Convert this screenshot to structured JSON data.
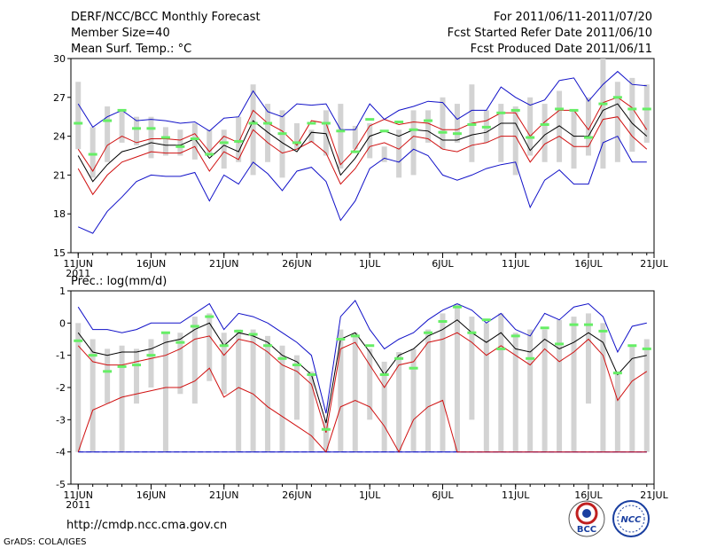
{
  "header": {
    "left": [
      "DERF/NCC/BCC Monthly Forecast",
      "Member Size=40",
      "Mean Surf. Temp.: °C"
    ],
    "right": [
      "For 2011/06/11-2011/07/20",
      "Fcst Started Refer Date 2011/06/10",
      "Fcst Produced Date 2011/06/11"
    ]
  },
  "footer": {
    "url": "http://cmdp.ncc.cma.gov.cn",
    "grads": "GrADS: COLA/IGES",
    "logo_bcc": "BCC",
    "logo_ncc": "NCC"
  },
  "colors": {
    "box": "#d3d3d3",
    "mean": "#000000",
    "median": "#66ee66",
    "spread": "#d01010",
    "extreme": "#1010c8",
    "zero": "#2030c0"
  },
  "chart_data": [
    {
      "type": "line",
      "title": "Mean Surf. Temp.: °C",
      "x_ticks": [
        "11JUN",
        "16JUN",
        "21JUN",
        "26JUN",
        "1JUL",
        "6JUL",
        "11JUL",
        "16JUL",
        "21JUL"
      ],
      "x_sub": "2011",
      "ylim": [
        15,
        30
      ],
      "y_ticks": [
        15,
        18,
        21,
        24,
        27,
        30
      ],
      "days": 40,
      "box_low": [
        23.0,
        20.8,
        22.0,
        23.5,
        23.3,
        22.3,
        22.5,
        22.5,
        22.2,
        22.5,
        21.5,
        22.0,
        21.0,
        22.0,
        20.8,
        23.0,
        23.5,
        22.5,
        21.5,
        23.0,
        22.3,
        22.0,
        20.8,
        21.0,
        23.5,
        23.0,
        23.5,
        22.0,
        23.5,
        22.0,
        21.0,
        22.5,
        22.0,
        22.0,
        21.5,
        22.5,
        21.5,
        22.0,
        22.8,
        23.5
      ],
      "box_high": [
        28.2,
        24.7,
        26.3,
        26.0,
        25.5,
        25.5,
        24.7,
        24.5,
        25.0,
        24.5,
        24.5,
        25.5,
        28.0,
        26.5,
        26.0,
        25.0,
        24.5,
        26.0,
        26.5,
        24.8,
        25.0,
        23.2,
        24.5,
        26.0,
        26.0,
        27.0,
        26.5,
        28.0,
        26.0,
        26.5,
        26.3,
        27.0,
        26.5,
        27.5,
        26.0,
        27.0,
        30.0,
        28.2,
        28.5,
        28.0
      ],
      "series": [
        {
          "name": "max",
          "values": [
            17.0,
            16.5,
            18.2,
            19.3,
            20.5,
            21.0,
            20.9,
            20.9,
            21.2,
            19.0,
            21.0,
            20.3,
            22.0,
            21.1,
            19.8,
            21.3,
            21.6,
            20.5,
            17.5,
            19.0,
            21.5,
            22.3,
            22.0,
            23.0,
            22.5,
            21.0,
            20.6,
            21.0,
            21.5,
            21.8,
            22.0,
            18.5,
            20.6,
            21.4,
            20.3,
            20.3,
            23.5,
            24.0,
            22.0,
            22.0
          ]
        },
        {
          "name": "spread_low",
          "values": [
            21.5,
            19.5,
            21.0,
            22.0,
            22.4,
            22.8,
            22.7,
            22.7,
            23.2,
            21.3,
            22.8,
            22.2,
            24.5,
            23.5,
            22.7,
            23.0,
            23.6,
            22.7,
            20.3,
            21.5,
            23.2,
            23.5,
            23.0,
            24.0,
            23.8,
            23.0,
            22.8,
            23.3,
            23.5,
            24.0,
            24.0,
            22.0,
            23.4,
            24.0,
            23.2,
            23.2,
            25.3,
            25.5,
            24.0,
            23.0
          ]
        },
        {
          "name": "mean",
          "values": [
            22.5,
            20.5,
            21.8,
            22.8,
            23.1,
            23.5,
            23.3,
            23.3,
            23.8,
            22.3,
            23.3,
            22.8,
            25.2,
            24.3,
            23.5,
            22.8,
            24.3,
            24.2,
            21.0,
            22.3,
            24.0,
            24.4,
            24.0,
            24.5,
            24.4,
            23.7,
            23.7,
            24.1,
            24.3,
            25.0,
            25.0,
            22.9,
            24.1,
            24.8,
            24.0,
            24.0,
            26.0,
            26.5,
            25.0,
            24.0
          ]
        },
        {
          "name": "spread_high",
          "values": [
            23.0,
            21.3,
            23.3,
            24.0,
            23.5,
            23.8,
            23.8,
            23.7,
            24.2,
            22.8,
            24.0,
            23.5,
            26.0,
            25.0,
            24.4,
            23.3,
            25.2,
            25.0,
            21.8,
            23.0,
            24.8,
            25.3,
            24.9,
            25.1,
            25.0,
            24.5,
            24.5,
            25.0,
            25.2,
            25.8,
            25.8,
            24.0,
            25.1,
            26.0,
            26.0,
            24.5,
            26.6,
            27.0,
            26.2,
            24.5
          ]
        },
        {
          "name": "min",
          "values": [
            26.5,
            24.7,
            25.5,
            26.0,
            25.2,
            25.3,
            25.2,
            25.0,
            25.1,
            24.4,
            25.4,
            25.5,
            27.5,
            25.9,
            25.5,
            26.5,
            26.4,
            26.5,
            24.5,
            24.5,
            26.5,
            25.3,
            26.0,
            26.3,
            26.7,
            26.6,
            25.3,
            26.0,
            26.0,
            27.8,
            27.0,
            26.4,
            26.8,
            28.3,
            28.5,
            26.7,
            28.0,
            29.0,
            28.0,
            27.9
          ]
        },
        {
          "name": "median",
          "values": [
            25.0,
            22.6,
            25.2,
            26.0,
            24.6,
            24.6,
            23.9,
            23.2,
            23.8,
            22.6,
            23.5,
            23.6,
            25.0,
            25.0,
            24.2,
            23.5,
            25.0,
            25.0,
            24.4,
            22.8,
            25.3,
            24.4,
            25.1,
            24.5,
            25.2,
            24.3,
            24.2,
            24.9,
            24.7,
            25.8,
            26.0,
            23.9,
            24.9,
            26.1,
            26.0,
            23.9,
            26.5,
            27.0,
            26.1,
            26.1
          ]
        }
      ]
    },
    {
      "type": "line",
      "title": "Prec.: log(mm/d)",
      "x_ticks": [
        "11JUN",
        "16JUN",
        "21JUN",
        "26JUN",
        "1JUL",
        "6JUL",
        "11JUL",
        "16JUL",
        "21JUL"
      ],
      "x_sub": "2011",
      "ylim": [
        -5,
        1
      ],
      "y_ticks": [
        -5,
        -4,
        -3,
        -2,
        -1,
        0,
        1
      ],
      "days": 40,
      "box_low": [
        -4.0,
        -4.0,
        -2.5,
        -4.0,
        -2.5,
        -2.0,
        -4.0,
        -2.2,
        -2.5,
        -1.8,
        -2.2,
        -4.0,
        -4.0,
        -4.0,
        -4.0,
        -3.0,
        -4.0,
        -4.0,
        -4.0,
        -4.0,
        -3.0,
        -4.0,
        -4.0,
        -4.0,
        -4.0,
        -4.0,
        -4.0,
        -3.0,
        -4.0,
        -4.0,
        -4.0,
        -4.0,
        -4.0,
        -4.0,
        -4.0,
        -2.5,
        -4.0,
        -4.0,
        -4.0,
        -4.0
      ],
      "box_high": [
        0.0,
        -0.5,
        -0.8,
        -0.7,
        -0.8,
        -0.5,
        -0.3,
        -0.3,
        0.2,
        0.3,
        -0.3,
        -0.2,
        -0.2,
        -0.4,
        -0.7,
        -1.0,
        -1.5,
        -3.0,
        -0.2,
        -0.3,
        -0.8,
        -1.2,
        -0.9,
        -0.8,
        -0.2,
        0.3,
        0.6,
        0.2,
        0.0,
        0.3,
        -0.3,
        -0.2,
        -0.2,
        0.1,
        0.2,
        0.3,
        0.0,
        -1.5,
        -0.7,
        -0.5
      ],
      "series": [
        {
          "name": "min",
          "values": [
            -4,
            -4,
            -4,
            -4,
            -4,
            -4,
            -4,
            -4,
            -4,
            -4,
            -4,
            -4,
            -4,
            -4,
            -4,
            -4,
            -4,
            -4,
            -4,
            -4,
            -4,
            -4,
            -4,
            -4,
            -4,
            -4,
            -4,
            -4,
            -4,
            -4,
            -4,
            -4,
            -4,
            -4,
            -4,
            -4,
            -4,
            -4,
            -4,
            -4
          ]
        },
        {
          "name": "spread_low",
          "values": [
            -4.0,
            -2.7,
            -2.5,
            -2.3,
            -2.2,
            -2.1,
            -2.0,
            -2.0,
            -1.8,
            -1.4,
            -2.3,
            -2.0,
            -2.2,
            -2.6,
            -2.9,
            -3.2,
            -3.5,
            -4.0,
            -2.6,
            -2.4,
            -2.6,
            -3.2,
            -4.0,
            -3.0,
            -2.6,
            -2.4,
            -4.0,
            -4.0,
            -4.0,
            -4.0,
            -4.0,
            -4.0,
            -4.0,
            -4.0,
            -4.0,
            -4.0,
            -4.0,
            -4.0,
            -4.0,
            -4.0
          ]
        },
        {
          "name": "spread_high",
          "values": [
            -0.7,
            -1.2,
            -1.3,
            -1.3,
            -1.2,
            -1.1,
            -1.0,
            -0.8,
            -0.5,
            -0.4,
            -1.0,
            -0.5,
            -0.6,
            -0.9,
            -1.3,
            -1.5,
            -1.9,
            -3.4,
            -0.8,
            -0.6,
            -1.3,
            -2.0,
            -1.3,
            -1.2,
            -0.6,
            -0.5,
            -0.3,
            -0.6,
            -1.0,
            -0.7,
            -1.0,
            -1.3,
            -0.8,
            -1.2,
            -0.9,
            -0.5,
            -1.0,
            -2.4,
            -1.8,
            -1.5
          ]
        },
        {
          "name": "mean",
          "values": [
            -0.3,
            -0.9,
            -1.0,
            -0.9,
            -0.9,
            -0.8,
            -0.6,
            -0.5,
            -0.2,
            0.0,
            -0.7,
            -0.3,
            -0.4,
            -0.6,
            -1.0,
            -1.2,
            -1.6,
            -3.1,
            -0.5,
            -0.3,
            -0.9,
            -1.6,
            -1.0,
            -0.8,
            -0.4,
            -0.2,
            0.1,
            -0.3,
            -0.6,
            -0.3,
            -0.8,
            -0.9,
            -0.5,
            -0.8,
            -0.6,
            -0.3,
            -0.6,
            -1.6,
            -1.1,
            -1.0
          ]
        },
        {
          "name": "max",
          "values": [
            0.5,
            -0.2,
            -0.2,
            -0.3,
            -0.2,
            0.0,
            0.0,
            0.0,
            0.3,
            0.6,
            -0.2,
            0.3,
            0.2,
            0.0,
            -0.3,
            -0.6,
            -1.0,
            -2.8,
            0.2,
            0.7,
            -0.2,
            -0.8,
            -0.5,
            -0.3,
            0.1,
            0.4,
            0.6,
            0.4,
            0.0,
            0.3,
            -0.2,
            -0.4,
            0.3,
            0.1,
            0.5,
            0.6,
            0.2,
            -0.9,
            -0.1,
            0.0
          ]
        },
        {
          "name": "median",
          "values": [
            -0.55,
            -1.0,
            -1.5,
            -1.35,
            -1.3,
            -1.0,
            -0.3,
            -0.6,
            -0.1,
            0.2,
            -0.7,
            -0.25,
            -0.35,
            -0.7,
            -1.1,
            -1.3,
            -1.6,
            -3.3,
            -0.5,
            -0.4,
            -0.7,
            -1.6,
            -1.1,
            -1.4,
            -0.3,
            0.05,
            0.5,
            -0.3,
            0.1,
            -0.8,
            -0.4,
            -1.1,
            -0.15,
            -0.65,
            -0.05,
            -0.05,
            -0.25,
            -1.55,
            -0.7,
            -0.8
          ]
        }
      ]
    }
  ]
}
